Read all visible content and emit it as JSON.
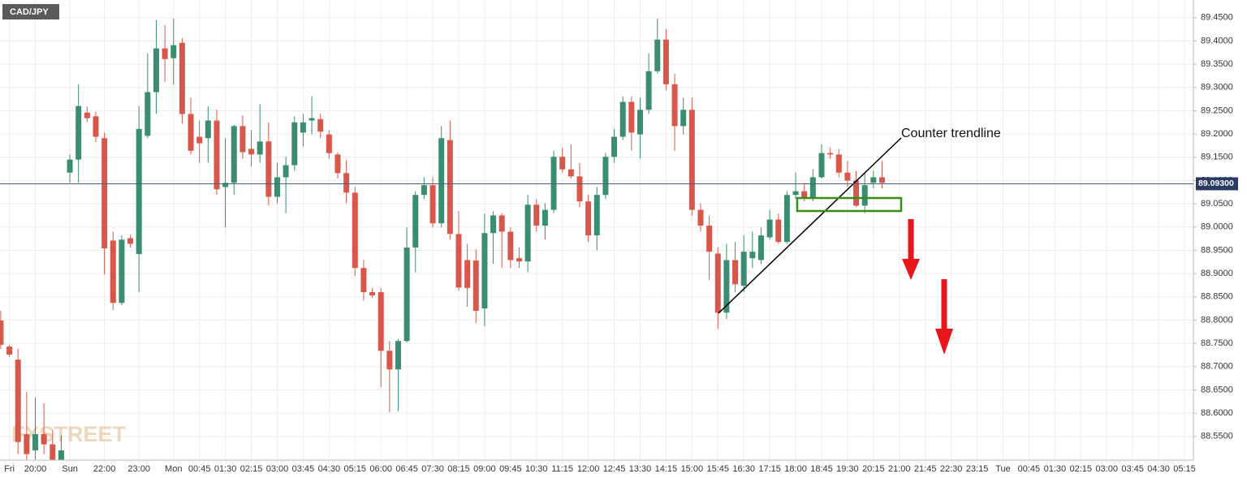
{
  "chart_data": {
    "type": "candlestick",
    "symbol": "CAD/JPY",
    "watermark": "FXSTREET",
    "annotation": "Counter trendline",
    "current_price": {
      "value": 89.093,
      "label": "89.09300"
    },
    "up_color": "#3b8d72",
    "down_color": "#d9574a",
    "grid": true,
    "ylim": [
      88.499,
      89.488
    ],
    "yticks": [
      {
        "value": 88.55,
        "label": "88.5500"
      },
      {
        "value": 88.6,
        "label": "88.6000"
      },
      {
        "value": 88.65,
        "label": "88.6500"
      },
      {
        "value": 88.7,
        "label": "88.7000"
      },
      {
        "value": 88.75,
        "label": "88.7500"
      },
      {
        "value": 88.8,
        "label": "88.8000"
      },
      {
        "value": 88.85,
        "label": "88.8500"
      },
      {
        "value": 88.9,
        "label": "88.9000"
      },
      {
        "value": 88.95,
        "label": "88.9500"
      },
      {
        "value": 89.0,
        "label": "89.0000"
      },
      {
        "value": 89.05,
        "label": "89.0500"
      },
      {
        "value": 89.1,
        "label": "89.1000"
      },
      {
        "value": 89.15,
        "label": "89.1500"
      },
      {
        "value": 89.2,
        "label": "89.2000"
      },
      {
        "value": 89.25,
        "label": "89.2500"
      },
      {
        "value": 89.3,
        "label": "89.3000"
      },
      {
        "value": 89.35,
        "label": "89.3500"
      },
      {
        "value": 89.4,
        "label": "89.4000"
      },
      {
        "value": 89.45,
        "label": "89.4500"
      }
    ],
    "categories": [
      null,
      "Fri",
      null,
      null,
      "20:00",
      null,
      null,
      null,
      "Sun",
      null,
      null,
      null,
      "22:00",
      null,
      null,
      null,
      "23:00",
      null,
      null,
      null,
      "Mon",
      null,
      null,
      "00:45",
      null,
      null,
      "01:30",
      null,
      null,
      "02:15",
      null,
      null,
      "03:00",
      null,
      null,
      "03:45",
      null,
      null,
      "04:30",
      null,
      null,
      "05:15",
      null,
      null,
      "06:00",
      null,
      null,
      "06:45",
      null,
      null,
      "07:30",
      null,
      null,
      "08:15",
      null,
      null,
      "09:00",
      null,
      null,
      "09:45",
      null,
      null,
      "10:30",
      null,
      null,
      "11:15",
      null,
      null,
      "12:00",
      null,
      null,
      "12:45",
      null,
      null,
      "13:30",
      null,
      null,
      "14:15",
      null,
      null,
      "15:00",
      null,
      null,
      "15:45",
      null,
      null,
      "16:30",
      null,
      null,
      "17:15",
      null,
      null,
      "18:00",
      null,
      null,
      "18:45",
      null,
      null,
      "19:30",
      null,
      null,
      "20:15",
      null,
      null,
      "21:00",
      null,
      null,
      "21:45",
      null,
      null,
      "22:30",
      null,
      null,
      "23:15",
      null,
      null,
      "Tue",
      null,
      null,
      "00:45",
      null,
      null,
      "01:30",
      null,
      null,
      "02:15",
      null,
      null,
      "03:00",
      null,
      null,
      "03:45",
      null,
      null,
      "04:30",
      null,
      null,
      "05:15"
    ],
    "open": [
      88.799,
      88.743,
      88.715,
      88.555,
      88.52,
      88.555,
      88.533,
      88.5,
      89.117,
      89.145,
      89.246,
      89.238,
      89.191,
      88.971,
      88.837,
      88.976,
      88.942,
      89.196,
      89.29,
      89.384,
      89.363,
      89.396,
      89.243,
      89.194,
      89.191,
      89.229,
      89.086,
      89.095,
      89.217,
      89.168,
      89.156,
      89.184,
      89.065,
      89.107,
      89.133,
      89.203,
      89.229,
      89.232,
      89.199,
      89.156,
      89.116,
      89.074,
      88.912,
      88.86,
      88.86,
      88.734,
      88.694,
      88.755,
      88.956,
      89.069,
      89.09,
      89.008,
      89.187,
      88.985,
      88.929,
      88.928,
      88.825,
      88.987,
      89.025,
      88.99,
      88.933,
      88.926,
      89.048,
      89.003,
      89.037,
      89.151,
      89.124,
      89.109,
      89.055,
      88.982,
      89.069,
      89.151,
      89.194,
      89.269,
      89.199,
      89.252,
      89.335,
      89.403,
      89.307,
      89.217,
      89.252,
      89.037,
      89.003,
      88.943,
      88.816,
      88.929,
      88.874,
      88.933,
      88.929,
      88.978,
      89.016,
      88.968,
      89.069,
      89.077,
      89.063,
      89.107,
      89.159,
      89.156,
      89.117,
      89.1,
      89.046,
      89.095,
      89.107,
      null,
      null,
      null,
      null,
      null,
      null,
      null,
      null,
      null,
      null,
      null,
      null,
      null,
      null,
      null,
      null,
      null,
      null,
      null,
      null,
      null,
      null,
      null,
      null,
      null,
      null,
      null,
      null,
      null,
      null,
      null,
      null,
      null,
      null,
      null
    ],
    "high": [
      88.82,
      88.747,
      88.738,
      88.646,
      88.634,
      88.621,
      88.564,
      88.552,
      89.156,
      89.307,
      89.259,
      89.248,
      89.203,
      88.99,
      88.982,
      88.983,
      89.26,
      89.373,
      89.445,
      89.434,
      89.448,
      89.406,
      89.278,
      89.229,
      89.26,
      89.252,
      89.191,
      89.22,
      89.24,
      89.208,
      89.264,
      89.225,
      89.138,
      89.151,
      89.238,
      89.243,
      89.281,
      89.243,
      89.208,
      89.161,
      89.144,
      89.086,
      88.929,
      88.869,
      88.869,
      88.755,
      88.759,
      88.999,
      89.077,
      89.107,
      89.107,
      89.217,
      89.229,
      89.034,
      88.964,
      88.952,
      89.029,
      89.034,
      89.03,
      88.999,
      88.956,
      89.069,
      89.06,
      89.051,
      89.164,
      89.17,
      89.178,
      89.138,
      89.069,
      89.086,
      89.159,
      89.211,
      89.281,
      89.281,
      89.278,
      89.373,
      89.448,
      89.426,
      89.33,
      89.278,
      89.278,
      89.051,
      89.025,
      88.956,
      88.964,
      88.968,
      88.982,
      88.99,
      88.999,
      89.037,
      89.029,
      89.077,
      89.117,
      89.095,
      89.124,
      89.178,
      89.17,
      89.168,
      89.142,
      89.121,
      89.117,
      89.121,
      89.142,
      null,
      null,
      null,
      null,
      null,
      null,
      null,
      null,
      null,
      null,
      null,
      null,
      null,
      null,
      null,
      null,
      null,
      null,
      null,
      null,
      null,
      null,
      null,
      null,
      null,
      null,
      null,
      null,
      null,
      null,
      null,
      null,
      null,
      null,
      null
    ],
    "low": [
      88.738,
      88.721,
      88.512,
      88.499,
      88.499,
      88.512,
      88.499,
      88.5,
      89.095,
      89.095,
      89.225,
      89.182,
      88.898,
      88.822,
      88.832,
      88.956,
      88.86,
      89.191,
      89.243,
      89.312,
      89.306,
      89.222,
      89.156,
      89.138,
      89.138,
      89.069,
      88.999,
      89.069,
      89.147,
      89.13,
      89.138,
      89.046,
      89.051,
      89.03,
      89.121,
      89.173,
      89.199,
      89.191,
      89.147,
      89.104,
      89.051,
      88.895,
      88.842,
      88.848,
      88.656,
      88.602,
      88.604,
      88.752,
      88.903,
      89.06,
      88.999,
      88.999,
      88.973,
      88.863,
      88.829,
      88.794,
      88.787,
      88.921,
      88.912,
      88.912,
      88.912,
      88.903,
      88.99,
      88.973,
      89.03,
      89.117,
      89.104,
      89.043,
      88.968,
      88.95,
      89.06,
      89.138,
      89.187,
      89.164,
      89.147,
      89.243,
      89.33,
      89.295,
      89.164,
      89.199,
      89.025,
      88.99,
      88.886,
      88.781,
      88.802,
      88.86,
      88.86,
      88.912,
      88.921,
      88.973,
      88.964,
      88.964,
      89.06,
      89.055,
      89.055,
      89.104,
      89.147,
      89.107,
      89.086,
      89.043,
      89.03,
      89.083,
      89.083,
      null,
      null,
      null,
      null,
      null,
      null,
      null,
      null,
      null,
      null,
      null,
      null,
      null,
      null,
      null,
      null,
      null,
      null,
      null,
      null,
      null,
      null,
      null,
      null,
      null,
      null,
      null,
      null,
      null,
      null,
      null,
      null,
      null,
      null,
      null
    ],
    "close": [
      88.747,
      88.726,
      88.538,
      88.512,
      88.555,
      88.533,
      88.5,
      88.52,
      89.145,
      89.26,
      89.234,
      89.194,
      88.954,
      88.837,
      88.973,
      88.964,
      89.211,
      89.29,
      89.384,
      89.361,
      89.391,
      89.243,
      89.164,
      89.18,
      89.229,
      89.081,
      89.095,
      89.217,
      89.161,
      89.156,
      89.184,
      89.065,
      89.107,
      89.133,
      89.225,
      89.225,
      89.234,
      89.205,
      89.159,
      89.116,
      89.074,
      88.912,
      88.86,
      88.853,
      88.734,
      88.694,
      88.755,
      88.956,
      89.069,
      89.09,
      89.008,
      89.191,
      88.985,
      88.87,
      88.869,
      88.82,
      88.987,
      89.025,
      88.99,
      88.929,
      88.926,
      89.048,
      89.003,
      89.037,
      89.151,
      89.124,
      89.109,
      89.055,
      88.982,
      89.069,
      89.151,
      89.194,
      89.269,
      89.203,
      89.252,
      89.335,
      89.403,
      89.307,
      89.217,
      89.252,
      89.037,
      89.003,
      88.947,
      88.816,
      88.929,
      88.877,
      88.947,
      88.947,
      88.982,
      89.016,
      88.968,
      89.069,
      89.077,
      89.063,
      89.107,
      89.159,
      89.156,
      89.117,
      89.1,
      89.046,
      89.09,
      89.107,
      89.095,
      null,
      null,
      null,
      null,
      null,
      null,
      null,
      null,
      null,
      null,
      null,
      null,
      null,
      null,
      null,
      null,
      null,
      null,
      null,
      null,
      null,
      null,
      null,
      null,
      null,
      null,
      null,
      null,
      null,
      null,
      null,
      null,
      null,
      null,
      null
    ]
  }
}
